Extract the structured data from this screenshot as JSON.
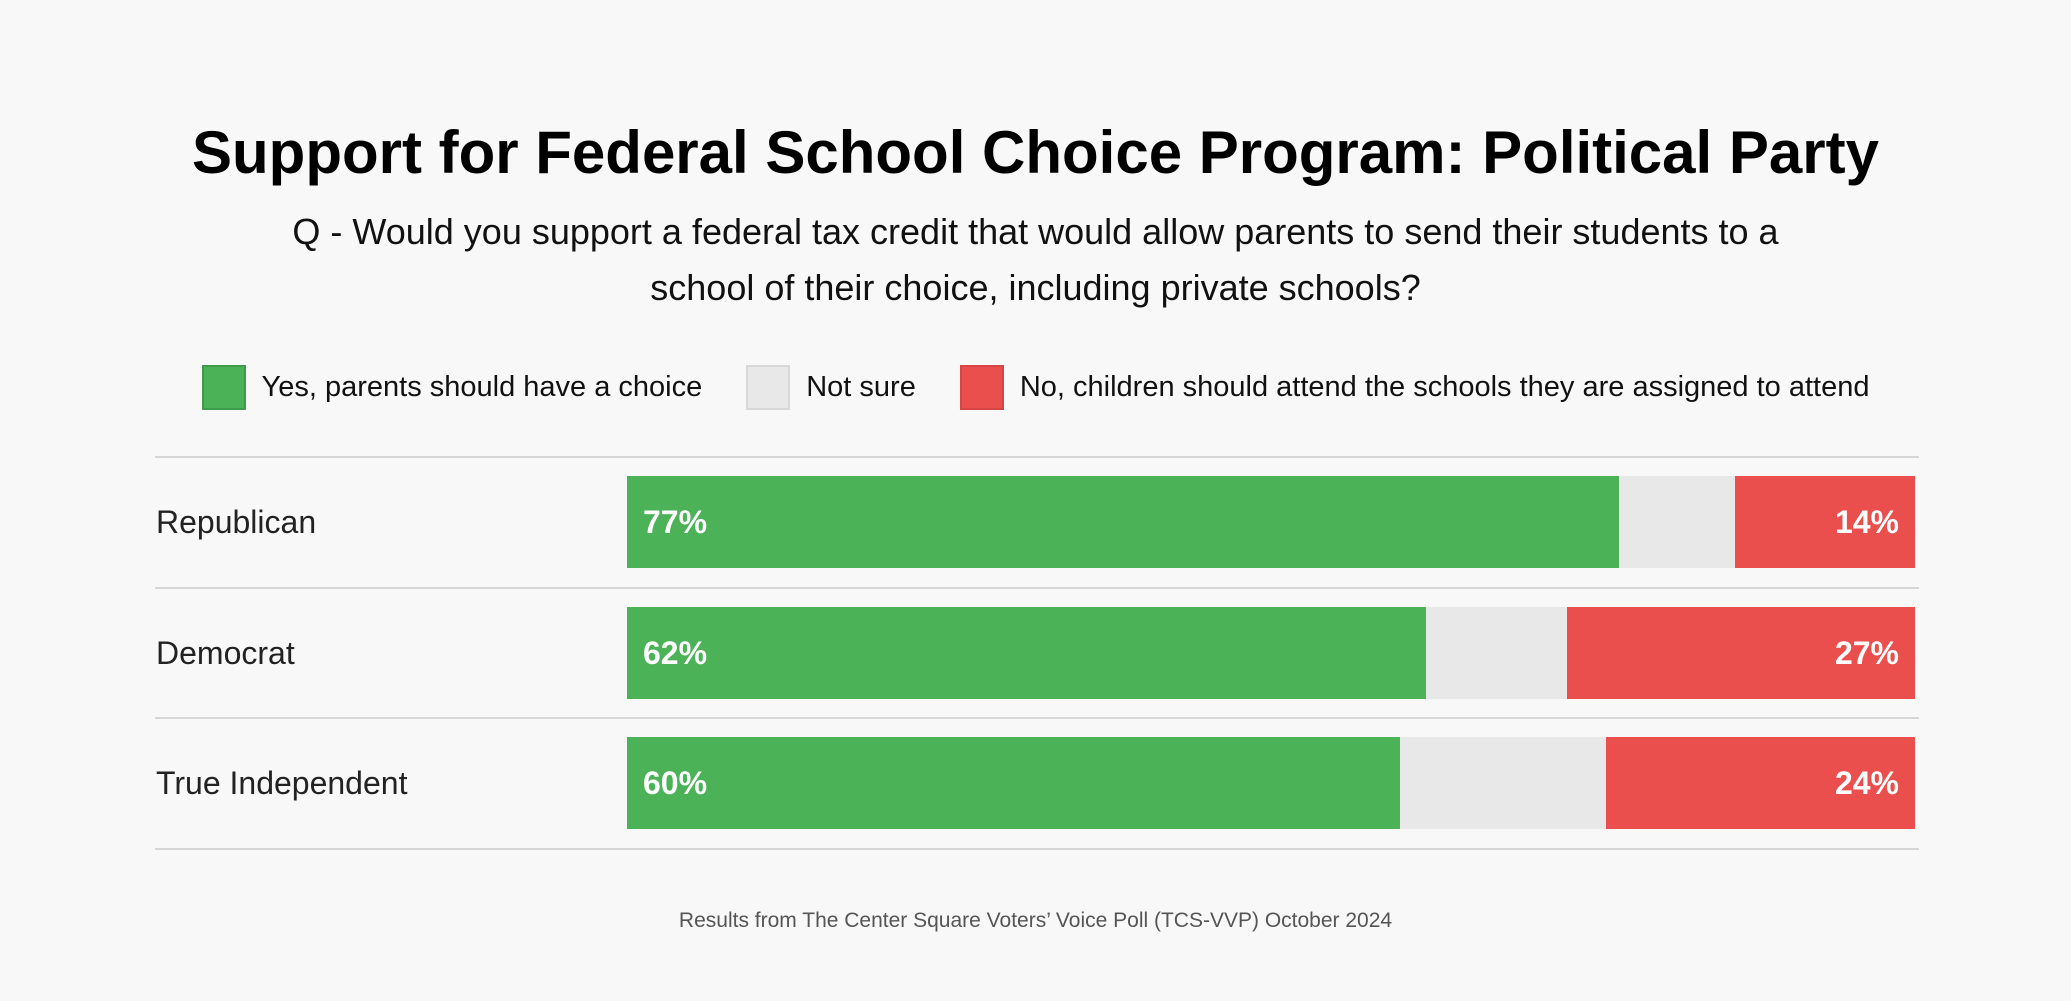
{
  "chart_data": {
    "type": "bar",
    "orientation": "horizontal",
    "stacked": true,
    "title": "Support for Federal School Choice Program: Political Party",
    "subtitle": "Q - Would you support a federal tax credit that would allow parents to send their students to a school of their choice, including private schools?",
    "categories": [
      "Republican",
      "Democrat",
      "True Independent"
    ],
    "series": [
      {
        "name": "Yes, parents should have a choice",
        "color": "#4cb258",
        "values": [
          77,
          62,
          60
        ],
        "labels": [
          "77%",
          "62%",
          "60%"
        ]
      },
      {
        "name": "Not sure",
        "color": "#e8e8e8",
        "values": [
          9,
          11,
          16
        ]
      },
      {
        "name": "No, children should attend the schools they are assigned to attend",
        "color": "#eb4f4d",
        "values": [
          14,
          27,
          24
        ],
        "labels": [
          "14%",
          "27%",
          "24%"
        ]
      }
    ],
    "xlim": [
      0,
      100
    ],
    "legend": "top",
    "grid": false,
    "footer": "Results from The Center Square Voters’ Voice Poll (TCS-VVP) October 2024"
  }
}
